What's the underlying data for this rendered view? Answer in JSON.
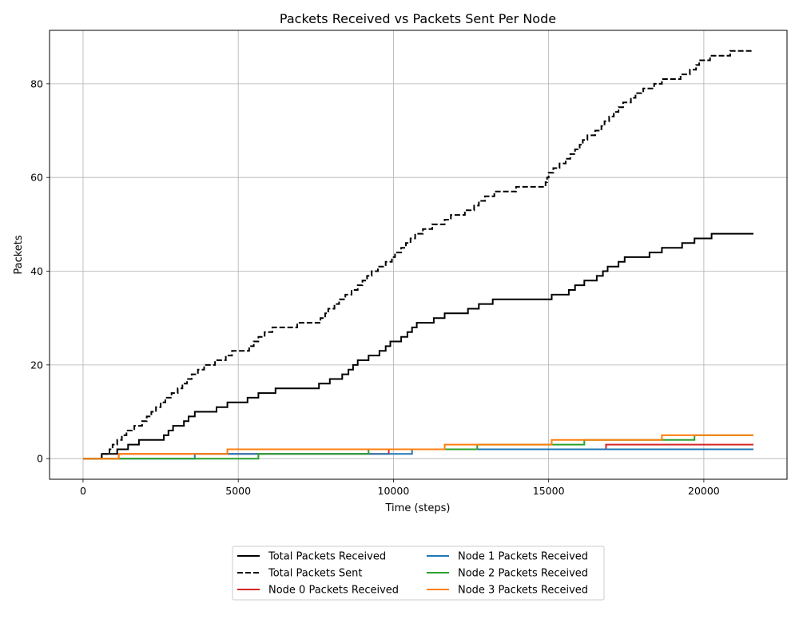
{
  "chart_data": {
    "type": "line",
    "title": "Packets Received vs Packets Sent Per Node",
    "xlabel": "Time (steps)",
    "ylabel": "Packets",
    "xlim": [
      -1080,
      22680
    ],
    "ylim": [
      -4.4,
      91.4
    ],
    "xticks": [
      0,
      5000,
      10000,
      15000,
      20000
    ],
    "yticks": [
      0,
      20,
      40,
      60,
      80
    ],
    "grid": true,
    "legend_position": "bottom-center",
    "series": [
      {
        "name": "Total Packets Received",
        "color": "#000000",
        "dash": "solid",
        "width": 2,
        "points": [
          [
            0,
            0
          ],
          [
            600,
            0
          ],
          [
            600,
            1
          ],
          [
            1100,
            1
          ],
          [
            1100,
            2
          ],
          [
            1450,
            2
          ],
          [
            1450,
            3
          ],
          [
            1800,
            3
          ],
          [
            1800,
            4
          ],
          [
            2600,
            4
          ],
          [
            2600,
            5
          ],
          [
            2750,
            5
          ],
          [
            2750,
            6
          ],
          [
            2900,
            6
          ],
          [
            2900,
            7
          ],
          [
            3250,
            7
          ],
          [
            3250,
            8
          ],
          [
            3400,
            8
          ],
          [
            3400,
            9
          ],
          [
            3600,
            9
          ],
          [
            3600,
            10
          ],
          [
            4300,
            10
          ],
          [
            4300,
            11
          ],
          [
            4650,
            11
          ],
          [
            4650,
            12
          ],
          [
            5300,
            12
          ],
          [
            5300,
            13
          ],
          [
            5650,
            13
          ],
          [
            5650,
            14
          ],
          [
            6200,
            14
          ],
          [
            6200,
            15
          ],
          [
            7600,
            15
          ],
          [
            7600,
            16
          ],
          [
            7950,
            16
          ],
          [
            7950,
            17
          ],
          [
            8350,
            17
          ],
          [
            8350,
            18
          ],
          [
            8550,
            18
          ],
          [
            8550,
            19
          ],
          [
            8700,
            19
          ],
          [
            8700,
            20
          ],
          [
            8850,
            20
          ],
          [
            8850,
            21
          ],
          [
            9200,
            21
          ],
          [
            9200,
            22
          ],
          [
            9550,
            22
          ],
          [
            9550,
            23
          ],
          [
            9750,
            23
          ],
          [
            9750,
            24
          ],
          [
            9900,
            24
          ],
          [
            9900,
            25
          ],
          [
            10250,
            25
          ],
          [
            10250,
            26
          ],
          [
            10450,
            26
          ],
          [
            10450,
            27
          ],
          [
            10600,
            27
          ],
          [
            10600,
            28
          ],
          [
            10750,
            28
          ],
          [
            10750,
            29
          ],
          [
            11300,
            29
          ],
          [
            11300,
            30
          ],
          [
            11650,
            30
          ],
          [
            11650,
            31
          ],
          [
            12400,
            31
          ],
          [
            12400,
            32
          ],
          [
            12750,
            32
          ],
          [
            12750,
            33
          ],
          [
            13200,
            33
          ],
          [
            13200,
            34
          ],
          [
            15100,
            34
          ],
          [
            15100,
            35
          ],
          [
            15650,
            35
          ],
          [
            15650,
            36
          ],
          [
            15850,
            36
          ],
          [
            15850,
            37
          ],
          [
            16150,
            37
          ],
          [
            16150,
            38
          ],
          [
            16550,
            38
          ],
          [
            16550,
            39
          ],
          [
            16750,
            39
          ],
          [
            16750,
            40
          ],
          [
            16900,
            40
          ],
          [
            16900,
            41
          ],
          [
            17250,
            41
          ],
          [
            17250,
            42
          ],
          [
            17450,
            42
          ],
          [
            17450,
            43
          ],
          [
            18250,
            43
          ],
          [
            18250,
            44
          ],
          [
            18650,
            44
          ],
          [
            18650,
            45
          ],
          [
            19300,
            45
          ],
          [
            19300,
            46
          ],
          [
            19700,
            46
          ],
          [
            19700,
            47
          ],
          [
            20250,
            47
          ],
          [
            20250,
            48
          ],
          [
            21600,
            48
          ]
        ]
      },
      {
        "name": "Total Packets Sent",
        "color": "#000000",
        "dash": "dashed",
        "width": 2,
        "points": [
          [
            0,
            0
          ],
          [
            600,
            0
          ],
          [
            600,
            1
          ],
          [
            850,
            1
          ],
          [
            850,
            2
          ],
          [
            950,
            2
          ],
          [
            950,
            3
          ],
          [
            1100,
            3
          ],
          [
            1100,
            4
          ],
          [
            1250,
            4
          ],
          [
            1250,
            5
          ],
          [
            1400,
            5
          ],
          [
            1400,
            6
          ],
          [
            1650,
            6
          ],
          [
            1650,
            7
          ],
          [
            1900,
            7
          ],
          [
            1900,
            8
          ],
          [
            2050,
            8
          ],
          [
            2050,
            9
          ],
          [
            2200,
            9
          ],
          [
            2200,
            10
          ],
          [
            2350,
            10
          ],
          [
            2350,
            11
          ],
          [
            2500,
            11
          ],
          [
            2500,
            12
          ],
          [
            2650,
            12
          ],
          [
            2650,
            13
          ],
          [
            2850,
            13
          ],
          [
            2850,
            14
          ],
          [
            3050,
            14
          ],
          [
            3050,
            15
          ],
          [
            3200,
            15
          ],
          [
            3200,
            16
          ],
          [
            3350,
            16
          ],
          [
            3350,
            17
          ],
          [
            3500,
            17
          ],
          [
            3500,
            18
          ],
          [
            3700,
            18
          ],
          [
            3700,
            19
          ],
          [
            3900,
            19
          ],
          [
            3900,
            20
          ],
          [
            4250,
            20
          ],
          [
            4250,
            21
          ],
          [
            4600,
            21
          ],
          [
            4600,
            22
          ],
          [
            4800,
            22
          ],
          [
            4800,
            23
          ],
          [
            5350,
            23
          ],
          [
            5350,
            24
          ],
          [
            5500,
            24
          ],
          [
            5500,
            25
          ],
          [
            5650,
            25
          ],
          [
            5650,
            26
          ],
          [
            5850,
            26
          ],
          [
            5850,
            27
          ],
          [
            6100,
            27
          ],
          [
            6100,
            28
          ],
          [
            6900,
            28
          ],
          [
            6900,
            29
          ],
          [
            7650,
            29
          ],
          [
            7650,
            30
          ],
          [
            7800,
            30
          ],
          [
            7800,
            31
          ],
          [
            7900,
            31
          ],
          [
            7900,
            32
          ],
          [
            8100,
            32
          ],
          [
            8100,
            33
          ],
          [
            8250,
            33
          ],
          [
            8250,
            34
          ],
          [
            8450,
            34
          ],
          [
            8450,
            35
          ],
          [
            8650,
            35
          ],
          [
            8650,
            36
          ],
          [
            8850,
            36
          ],
          [
            8850,
            37
          ],
          [
            9000,
            37
          ],
          [
            9000,
            38
          ],
          [
            9150,
            38
          ],
          [
            9150,
            39
          ],
          [
            9300,
            39
          ],
          [
            9300,
            40
          ],
          [
            9500,
            40
          ],
          [
            9500,
            41
          ],
          [
            9750,
            41
          ],
          [
            9750,
            42
          ],
          [
            9950,
            42
          ],
          [
            9950,
            43
          ],
          [
            10050,
            43
          ],
          [
            10050,
            44
          ],
          [
            10250,
            44
          ],
          [
            10250,
            45
          ],
          [
            10400,
            45
          ],
          [
            10400,
            46
          ],
          [
            10550,
            46
          ],
          [
            10550,
            47
          ],
          [
            10700,
            47
          ],
          [
            10700,
            48
          ],
          [
            10950,
            48
          ],
          [
            10950,
            49
          ],
          [
            11250,
            49
          ],
          [
            11250,
            50
          ],
          [
            11650,
            50
          ],
          [
            11650,
            51
          ],
          [
            11850,
            51
          ],
          [
            11850,
            52
          ],
          [
            12300,
            52
          ],
          [
            12300,
            53
          ],
          [
            12600,
            53
          ],
          [
            12600,
            54
          ],
          [
            12750,
            54
          ],
          [
            12750,
            55
          ],
          [
            12950,
            55
          ],
          [
            12950,
            56
          ],
          [
            13250,
            56
          ],
          [
            13250,
            57
          ],
          [
            13950,
            57
          ],
          [
            13950,
            58
          ],
          [
            14900,
            58
          ],
          [
            14900,
            59
          ],
          [
            14950,
            59
          ],
          [
            14950,
            60
          ],
          [
            15000,
            60
          ],
          [
            15000,
            61
          ],
          [
            15150,
            61
          ],
          [
            15150,
            62
          ],
          [
            15350,
            62
          ],
          [
            15350,
            63
          ],
          [
            15550,
            63
          ],
          [
            15550,
            64
          ],
          [
            15700,
            64
          ],
          [
            15700,
            65
          ],
          [
            15850,
            65
          ],
          [
            15850,
            66
          ],
          [
            16000,
            66
          ],
          [
            16000,
            67
          ],
          [
            16100,
            67
          ],
          [
            16100,
            68
          ],
          [
            16250,
            68
          ],
          [
            16250,
            69
          ],
          [
            16500,
            69
          ],
          [
            16500,
            70
          ],
          [
            16700,
            70
          ],
          [
            16700,
            71
          ],
          [
            16800,
            71
          ],
          [
            16800,
            72
          ],
          [
            16950,
            72
          ],
          [
            16950,
            73
          ],
          [
            17100,
            73
          ],
          [
            17100,
            74
          ],
          [
            17250,
            74
          ],
          [
            17250,
            75
          ],
          [
            17400,
            75
          ],
          [
            17400,
            76
          ],
          [
            17650,
            76
          ],
          [
            17650,
            77
          ],
          [
            17800,
            77
          ],
          [
            17800,
            78
          ],
          [
            18050,
            78
          ],
          [
            18050,
            79
          ],
          [
            18400,
            79
          ],
          [
            18400,
            80
          ],
          [
            18650,
            80
          ],
          [
            18650,
            81
          ],
          [
            19250,
            81
          ],
          [
            19250,
            82
          ],
          [
            19550,
            82
          ],
          [
            19550,
            83
          ],
          [
            19750,
            83
          ],
          [
            19750,
            84
          ],
          [
            19850,
            84
          ],
          [
            19850,
            85
          ],
          [
            20200,
            85
          ],
          [
            20200,
            86
          ],
          [
            20850,
            86
          ],
          [
            20850,
            87
          ],
          [
            21600,
            87
          ]
        ]
      },
      {
        "name": "Node 0 Packets Received",
        "color": "#d62728",
        "dash": "solid",
        "width": 2,
        "points": [
          [
            0,
            0
          ],
          [
            1150,
            0
          ],
          [
            1150,
            1
          ],
          [
            9850,
            1
          ],
          [
            9850,
            2
          ],
          [
            16850,
            2
          ],
          [
            16850,
            3
          ],
          [
            21600,
            3
          ]
        ]
      },
      {
        "name": "Node 1 Packets Received",
        "color": "#1f77b4",
        "dash": "solid",
        "width": 2,
        "points": [
          [
            0,
            0
          ],
          [
            3600,
            0
          ],
          [
            3600,
            1
          ],
          [
            10600,
            1
          ],
          [
            10600,
            2
          ],
          [
            21600,
            2
          ]
        ]
      },
      {
        "name": "Node 2 Packets Received",
        "color": "#2ca02c",
        "dash": "solid",
        "width": 2,
        "points": [
          [
            0,
            0
          ],
          [
            5650,
            0
          ],
          [
            5650,
            1
          ],
          [
            9200,
            1
          ],
          [
            9200,
            2
          ],
          [
            12700,
            2
          ],
          [
            12700,
            3
          ],
          [
            16150,
            3
          ],
          [
            16150,
            4
          ],
          [
            19700,
            4
          ],
          [
            19700,
            5
          ],
          [
            21600,
            5
          ]
        ]
      },
      {
        "name": "Node 3 Packets Received",
        "color": "#ff7f0e",
        "dash": "solid",
        "width": 2,
        "points": [
          [
            0,
            0
          ],
          [
            1150,
            0
          ],
          [
            1150,
            1
          ],
          [
            4650,
            1
          ],
          [
            4650,
            2
          ],
          [
            11650,
            2
          ],
          [
            11650,
            3
          ],
          [
            15100,
            3
          ],
          [
            15100,
            4
          ],
          [
            18650,
            4
          ],
          [
            18650,
            5
          ],
          [
            21600,
            5
          ]
        ]
      }
    ],
    "legend_order": [
      0,
      1,
      2,
      3,
      4,
      5
    ]
  }
}
